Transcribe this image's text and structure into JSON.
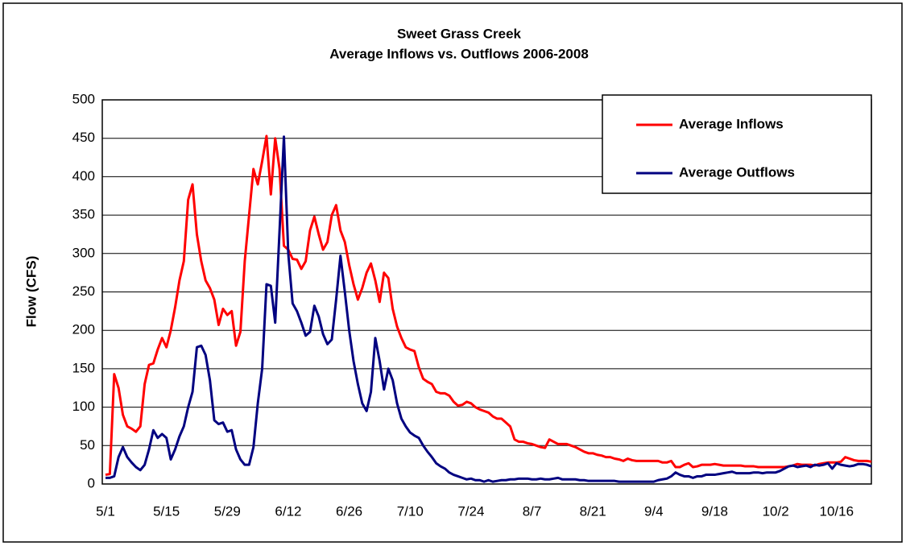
{
  "chart_data": {
    "type": "line",
    "title": "Sweet Grass Creek",
    "subtitle": "Average Inflows vs. Outflows 2006-2008",
    "y_label": "Flow (CFS)",
    "categories": [
      "5/1",
      null,
      null,
      null,
      null,
      null,
      null,
      null,
      null,
      null,
      null,
      null,
      null,
      null,
      "5/15",
      null,
      null,
      null,
      null,
      null,
      null,
      null,
      null,
      null,
      null,
      null,
      null,
      null,
      "5/29",
      null,
      null,
      null,
      null,
      null,
      null,
      null,
      null,
      null,
      null,
      null,
      null,
      null,
      "6/12",
      null,
      null,
      null,
      null,
      null,
      null,
      null,
      null,
      null,
      null,
      null,
      null,
      null,
      "6/26",
      null,
      null,
      null,
      null,
      null,
      null,
      null,
      null,
      null,
      null,
      null,
      null,
      null,
      "7/10",
      null,
      null,
      null,
      null,
      null,
      null,
      null,
      null,
      null,
      null,
      null,
      null,
      null,
      "7/24",
      null,
      null,
      null,
      null,
      null,
      null,
      null,
      null,
      null,
      null,
      null,
      null,
      null,
      "8/7",
      null,
      null,
      null,
      null,
      null,
      null,
      null,
      null,
      null,
      null,
      null,
      null,
      null,
      "8/21",
      null,
      null,
      null,
      null,
      null,
      null,
      null,
      null,
      null,
      null,
      null,
      null,
      null,
      "9/4",
      null,
      null,
      null,
      null,
      null,
      null,
      null,
      null,
      null,
      null,
      null,
      null,
      null,
      "9/18",
      null,
      null,
      null,
      null,
      null,
      null,
      null,
      null,
      null,
      null,
      null,
      null,
      null,
      "10/2",
      null,
      null,
      null,
      null,
      null,
      null,
      null,
      null,
      null,
      null,
      null,
      null,
      null,
      "10/16",
      null,
      null,
      null,
      null,
      null,
      null,
      null,
      null
    ],
    "series": [
      {
        "name": "Average Inflows",
        "color": "#ff0000",
        "values": [
          12,
          13,
          143,
          125,
          90,
          75,
          72,
          68,
          75,
          130,
          155,
          157,
          175,
          190,
          178,
          200,
          230,
          265,
          290,
          370,
          390,
          325,
          290,
          265,
          255,
          240,
          207,
          228,
          220,
          225,
          180,
          198,
          290,
          350,
          410,
          390,
          420,
          453,
          377,
          450,
          410,
          310,
          305,
          293,
          292,
          280,
          290,
          330,
          348,
          325,
          305,
          315,
          350,
          363,
          330,
          315,
          285,
          260,
          240,
          255,
          275,
          287,
          265,
          237,
          275,
          268,
          228,
          205,
          190,
          178,
          175,
          173,
          152,
          137,
          133,
          130,
          120,
          118,
          118,
          115,
          107,
          102,
          103,
          107,
          105,
          100,
          97,
          95,
          93,
          88,
          85,
          85,
          80,
          75,
          58,
          55,
          55,
          53,
          52,
          50,
          48,
          47,
          58,
          55,
          52,
          52,
          52,
          50,
          48,
          45,
          42,
          40,
          40,
          38,
          37,
          35,
          35,
          33,
          32,
          30,
          33,
          31,
          30,
          30,
          30,
          30,
          30,
          30,
          28,
          28,
          30,
          22,
          22,
          25,
          27,
          22,
          23,
          25,
          25,
          25,
          26,
          25,
          24,
          24,
          24,
          24,
          24,
          23,
          23,
          23,
          22,
          22,
          22,
          22,
          22,
          22,
          22,
          23,
          24,
          26,
          25,
          25,
          25,
          24,
          26,
          27,
          28,
          28,
          28,
          29,
          35,
          33,
          31,
          30,
          30,
          30,
          29
        ]
      },
      {
        "name": "Average Outflows",
        "color": "#000080",
        "values": [
          8,
          8,
          10,
          35,
          48,
          35,
          28,
          22,
          18,
          25,
          45,
          70,
          60,
          65,
          60,
          32,
          45,
          62,
          75,
          100,
          120,
          178,
          180,
          168,
          135,
          83,
          78,
          80,
          68,
          70,
          45,
          32,
          25,
          25,
          48,
          105,
          150,
          260,
          258,
          210,
          330,
          452,
          300,
          235,
          225,
          210,
          193,
          198,
          232,
          218,
          195,
          182,
          188,
          240,
          297,
          250,
          200,
          160,
          130,
          105,
          95,
          120,
          190,
          160,
          123,
          150,
          135,
          105,
          85,
          75,
          67,
          63,
          60,
          50,
          42,
          35,
          27,
          23,
          20,
          15,
          12,
          10,
          8,
          6,
          7,
          5,
          5,
          3,
          5,
          3,
          4,
          5,
          5,
          6,
          6,
          7,
          7,
          7,
          6,
          6,
          7,
          6,
          6,
          7,
          8,
          6,
          6,
          6,
          6,
          5,
          5,
          4,
          4,
          4,
          4,
          4,
          4,
          4,
          3,
          3,
          3,
          3,
          3,
          3,
          3,
          3,
          3,
          5,
          6,
          7,
          10,
          15,
          12,
          10,
          10,
          8,
          10,
          10,
          12,
          12,
          12,
          13,
          14,
          15,
          16,
          14,
          14,
          14,
          14,
          15,
          15,
          14,
          15,
          15,
          15,
          17,
          20,
          23,
          24,
          22,
          23,
          24,
          22,
          25,
          24,
          25,
          27,
          20,
          27,
          25,
          24,
          23,
          24,
          26,
          26,
          25,
          23
        ]
      }
    ],
    "ylim": [
      0,
      500
    ],
    "yticks": [
      0,
      50,
      100,
      150,
      200,
      250,
      300,
      350,
      400,
      450,
      500
    ],
    "grid": true,
    "legend": "upper right"
  }
}
